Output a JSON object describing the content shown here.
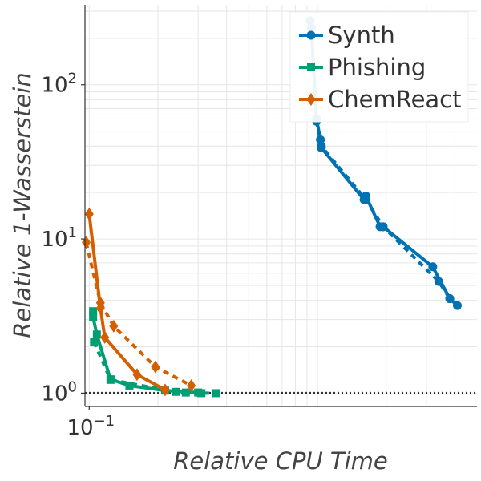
{
  "chart_data": {
    "type": "line",
    "xscale": "log",
    "yscale": "log",
    "xlabel": "Relative CPU Time",
    "ylabel": "Relative 1-Wasserstein",
    "xlim": [
      0.0958,
      5.0
    ],
    "ylim": [
      0.82,
      330
    ],
    "x_ticks": [
      {
        "value": 0.1,
        "label": "10",
        "exp": "−1"
      }
    ],
    "y_ticks": [
      {
        "value": 1,
        "label": "10",
        "exp": "0"
      },
      {
        "value": 10,
        "label": "10",
        "exp": "1"
      },
      {
        "value": 100,
        "label": "10",
        "exp": "2"
      }
    ],
    "x_minor_gridlines": [
      0.2,
      0.3,
      0.4,
      0.5,
      0.6,
      0.7,
      0.8,
      0.9,
      1,
      2,
      3,
      4
    ],
    "y_minor_gridlines": [
      2,
      3,
      4,
      5,
      6,
      7,
      8,
      9,
      20,
      30,
      40,
      50,
      60,
      70,
      80,
      90,
      200,
      300
    ],
    "reference_line": {
      "y": 1,
      "style": "dotted",
      "color": "#333333"
    },
    "legend": {
      "position": "top-right"
    },
    "series": [
      {
        "name": "Synth",
        "color": "#0072B2",
        "marker": "circle",
        "solid": {
          "x": [
            0.93,
            0.94,
            0.99,
            1.03,
            1.04,
            1.6,
            1.63,
            1.88,
            1.94,
            3.2,
            3.8
          ],
          "y": [
            260,
            235,
            60,
            44,
            39,
            18,
            19,
            12,
            12,
            6.6,
            4.1
          ]
        },
        "dashed": {
          "x": [
            0.94,
            0.99,
            1.04,
            1.63,
            1.94,
            3.4,
            3.8,
            4.1
          ],
          "y": [
            235,
            58,
            40,
            18,
            12,
            5.3,
            4.1,
            3.7
          ]
        }
      },
      {
        "name": "Phishing",
        "color": "#009E73",
        "marker": "square",
        "solid": {
          "x": [
            0.104,
            0.104,
            0.108,
            0.124,
            0.15,
            0.215,
            0.3
          ],
          "y": [
            3.4,
            3.1,
            2.4,
            1.23,
            1.12,
            1.04,
            1.01
          ]
        },
        "dashed": {
          "x": [
            0.105,
            0.124,
            0.24,
            0.265,
            0.31,
            0.36
          ],
          "y": [
            2.15,
            1.22,
            1.02,
            1.01,
            1.0,
            1.0
          ]
        }
      },
      {
        "name": "ChemReact",
        "color": "#D55E00",
        "marker": "diamond",
        "solid": {
          "x": [
            0.1,
            0.112,
            0.117,
            0.162,
            0.215
          ],
          "y": [
            14.5,
            3.55,
            2.3,
            1.32,
            1.05
          ]
        },
        "dashed": {
          "x": [
            0.097,
            0.112,
            0.128,
            0.195,
            0.28
          ],
          "y": [
            9.5,
            3.85,
            2.72,
            1.48,
            1.12
          ]
        }
      }
    ]
  }
}
